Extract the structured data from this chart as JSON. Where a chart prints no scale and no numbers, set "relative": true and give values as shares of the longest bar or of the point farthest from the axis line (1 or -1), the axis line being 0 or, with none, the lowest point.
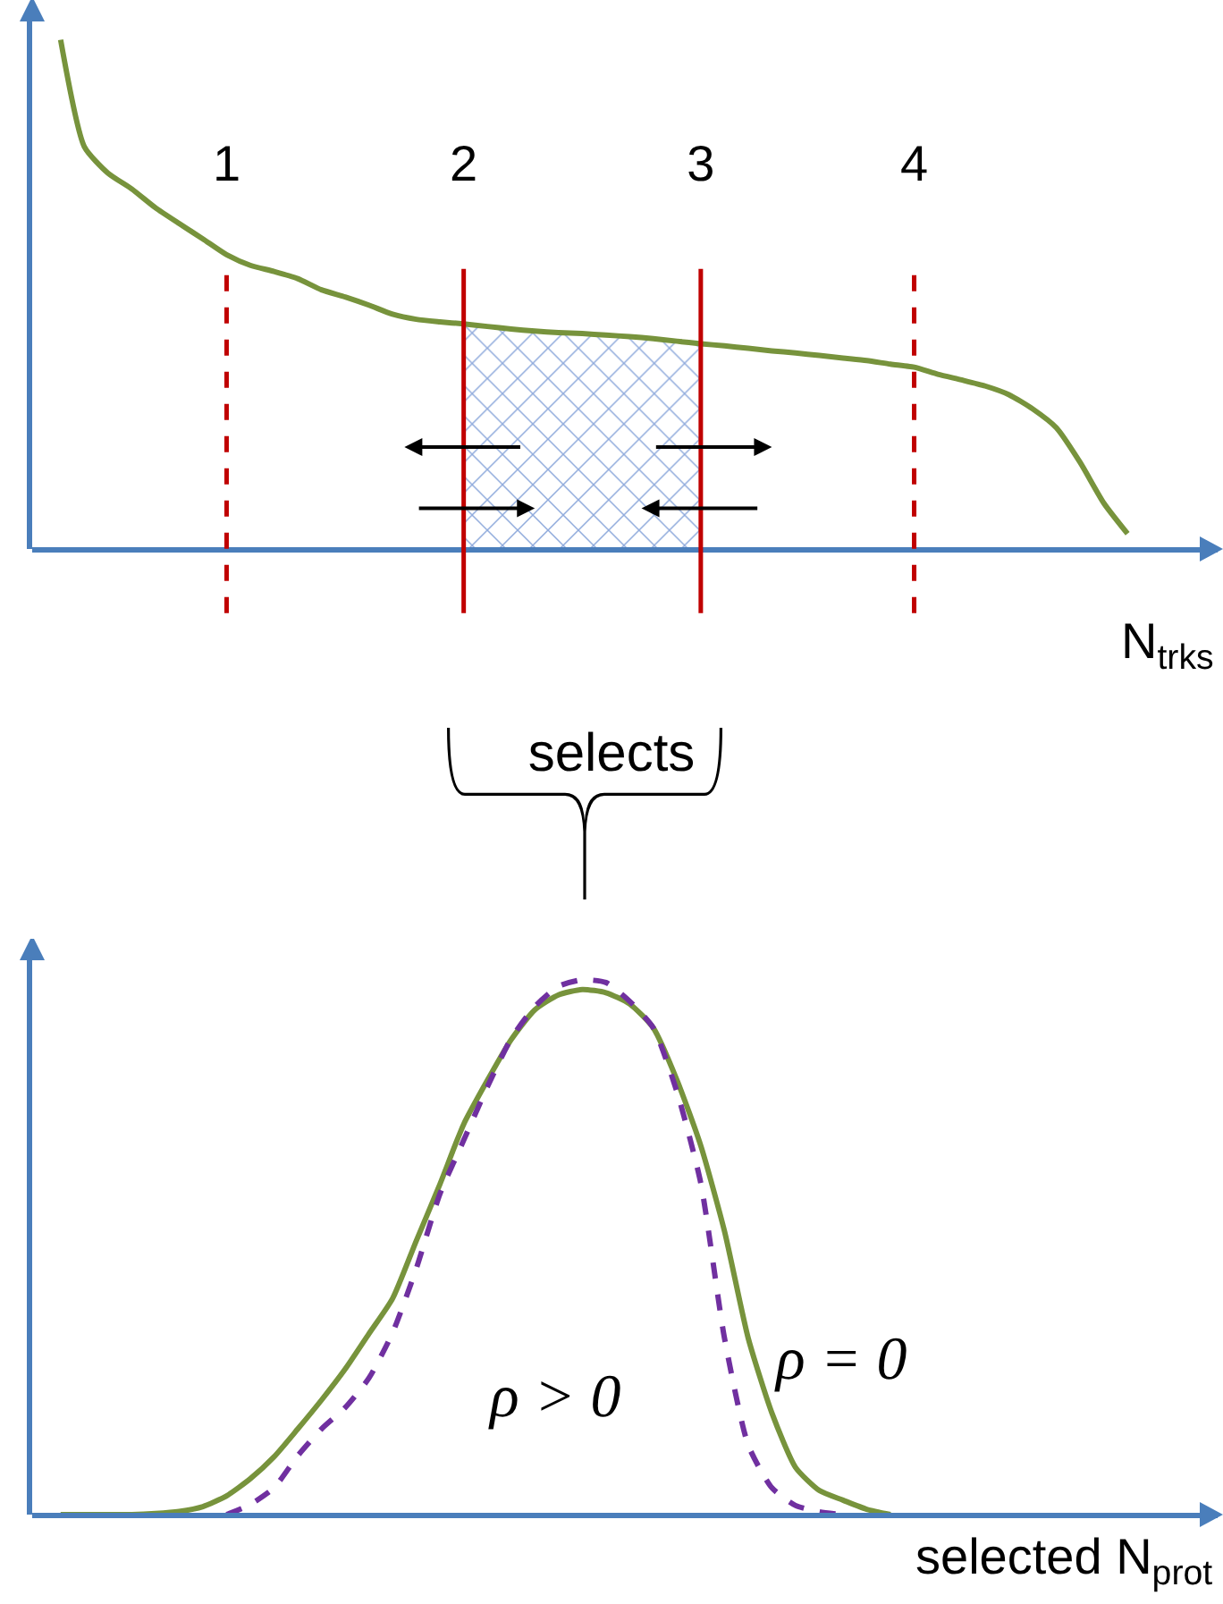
{
  "chart_data": [
    {
      "type": "line",
      "relative": true,
      "xlabel": "N$_{trks}$",
      "tick_labels": "x",
      "annotations": [
        "selects"
      ],
      "categories": [
        null,
        null,
        null,
        null,
        null,
        null,
        null,
        null,
        "1",
        null,
        null,
        null,
        null,
        null,
        null,
        null,
        null,
        null,
        "2",
        null,
        null,
        null,
        null,
        null,
        null,
        null,
        null,
        null,
        "3",
        null,
        null,
        null,
        null,
        null,
        null,
        null,
        null,
        "4",
        null,
        null,
        null,
        null,
        null,
        null,
        null,
        null,
        null,
        null,
        null,
        null
      ],
      "series": [
        {
          "type": "area",
          "color": "#8faadc",
          "values": [
            null,
            null,
            null,
            null,
            null,
            null,
            null,
            null,
            null,
            null,
            null,
            null,
            null,
            null,
            null,
            null,
            null,
            null,
            0.442,
            0.437,
            0.432,
            0.428,
            0.425,
            0.423,
            0.42,
            0.417,
            0.413,
            0.408,
            0.403,
            null,
            null,
            null,
            null,
            null,
            null,
            null,
            null,
            null,
            null,
            null,
            null,
            null,
            null,
            null,
            null,
            null,
            null,
            null,
            null,
            null
          ]
        },
        {
          "color": "#77933c",
          "values": [
            null,
            1,
            0.79,
            0.738,
            0.707,
            0.67,
            0.639,
            0.609,
            0.578,
            0.557,
            0.545,
            0.531,
            0.509,
            0.495,
            0.479,
            0.461,
            0.451,
            0.446,
            0.442,
            0.437,
            0.432,
            0.428,
            0.425,
            0.423,
            0.42,
            0.417,
            0.413,
            0.408,
            0.403,
            0.399,
            0.394,
            0.389,
            0.385,
            0.38,
            0.375,
            0.37,
            0.363,
            0.357,
            0.343,
            0.332,
            0.32,
            0.303,
            0.275,
            0.238,
            0.17,
            0.09,
            0.03,
            null,
            null,
            null
          ]
        }
      ],
      "ref_lines": [
        {
          "axis": "x",
          "value": "1",
          "color": "#c00000",
          "line_style": "dashed"
        },
        {
          "axis": "x",
          "value": "2",
          "color": "#c00000",
          "line_style": "solid"
        },
        {
          "axis": "x",
          "value": "3",
          "color": "#c00000",
          "line_style": "solid"
        },
        {
          "axis": "x",
          "value": "4",
          "color": "#c00000",
          "line_style": "dashed"
        }
      ]
    },
    {
      "type": "line",
      "relative": true,
      "xlabel": "selected N$_{prot}$",
      "annotations": [
        "ρ > 0",
        "ρ = 0"
      ],
      "categories": [
        null,
        null,
        null,
        null,
        null,
        null,
        null,
        null,
        null,
        null,
        null,
        null,
        null,
        null,
        null,
        null,
        null,
        null,
        null,
        null,
        null,
        null,
        null,
        null,
        null,
        null,
        null,
        null,
        null,
        null,
        null,
        null,
        null,
        null,
        null,
        null,
        null,
        null,
        null,
        null,
        null,
        null,
        null,
        null,
        null,
        null,
        null,
        null,
        null,
        null
      ],
      "series": [
        {
          "color": "#77933c",
          "line_style": "solid",
          "values": [
            null,
            0,
            0,
            0,
            0,
            0.002,
            0.006,
            0.015,
            0.035,
            0.067,
            0.108,
            0.16,
            0.214,
            0.272,
            0.338,
            0.404,
            0.512,
            0.618,
            0.73,
            0.812,
            0.888,
            0.944,
            0.972,
            0.982,
            0.976,
            0.955,
            0.91,
            0.812,
            0.69,
            0.53,
            0.33,
            0.19,
            0.088,
            0.045,
            0.027,
            0.01,
            0,
            null,
            null,
            null,
            null,
            null,
            null,
            null,
            null,
            null,
            null,
            null,
            null,
            null
          ]
        },
        {
          "color": "#7030a0",
          "line_style": "dashed",
          "values": [
            null,
            null,
            null,
            null,
            null,
            null,
            null,
            null,
            0,
            0.019,
            0.05,
            0.11,
            0.16,
            0.2,
            0.255,
            0.34,
            0.46,
            0.6,
            0.7,
            0.8,
            0.89,
            0.95,
            0.988,
            1,
            0.995,
            0.96,
            0.91,
            0.79,
            0.62,
            0.33,
            0.13,
            0.05,
            0.017,
            0.005,
            0,
            null,
            null,
            null,
            null,
            null,
            null,
            null,
            null,
            null,
            null,
            null,
            null,
            null,
            null,
            null
          ]
        }
      ]
    }
  ]
}
